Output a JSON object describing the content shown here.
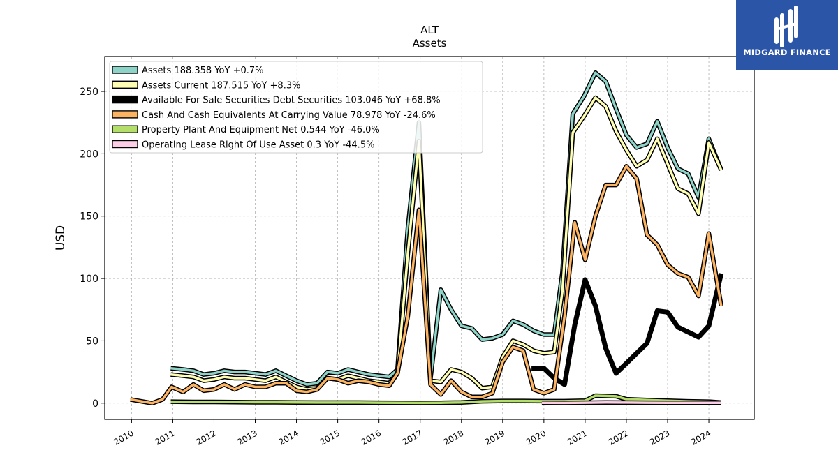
{
  "chart_data": {
    "type": "line",
    "title": "ALT",
    "subtitle": "Assets",
    "ylabel": "USD",
    "xlabel": "",
    "ylim": [
      -13,
      278
    ],
    "xlim": [
      2009.35,
      2025.1
    ],
    "grid": true,
    "legend_position": "top-left",
    "x_ticks": [
      "2010",
      "2011",
      "2012",
      "2013",
      "2014",
      "2015",
      "2016",
      "2017",
      "2018",
      "2019",
      "2020",
      "2021",
      "2022",
      "2023",
      "2024"
    ],
    "y_ticks": [
      "0",
      "50",
      "100",
      "150",
      "200",
      "250"
    ],
    "series": [
      {
        "name": "Assets  188.358 YoY +0.7%",
        "color": "#8dd3c7",
        "width": 3.5,
        "points": [
          [
            2010.95,
            28
          ],
          [
            2011.25,
            27
          ],
          [
            2011.5,
            26
          ],
          [
            2011.75,
            23
          ],
          [
            2012.0,
            24
          ],
          [
            2012.25,
            26
          ],
          [
            2012.5,
            25
          ],
          [
            2012.75,
            25
          ],
          [
            2013.0,
            24
          ],
          [
            2013.25,
            23
          ],
          [
            2013.5,
            26
          ],
          [
            2013.75,
            22
          ],
          [
            2014.0,
            18
          ],
          [
            2014.25,
            15
          ],
          [
            2014.5,
            16
          ],
          [
            2014.75,
            25
          ],
          [
            2015.0,
            24
          ],
          [
            2015.25,
            27
          ],
          [
            2015.5,
            25
          ],
          [
            2015.75,
            23
          ],
          [
            2016.0,
            22
          ],
          [
            2016.25,
            21
          ],
          [
            2016.45,
            27
          ],
          [
            2016.7,
            140
          ],
          [
            2016.97,
            225
          ],
          [
            2017.25,
            20
          ],
          [
            2017.5,
            91
          ],
          [
            2017.75,
            75
          ],
          [
            2018.0,
            62
          ],
          [
            2018.25,
            60
          ],
          [
            2018.5,
            51
          ],
          [
            2018.75,
            52
          ],
          [
            2019.0,
            55
          ],
          [
            2019.25,
            66
          ],
          [
            2019.5,
            63
          ],
          [
            2019.75,
            58
          ],
          [
            2020.0,
            55
          ],
          [
            2020.25,
            55
          ],
          [
            2020.45,
            105
          ],
          [
            2020.7,
            232
          ],
          [
            2020.97,
            246
          ],
          [
            2021.25,
            265
          ],
          [
            2021.5,
            258
          ],
          [
            2021.75,
            236
          ],
          [
            2022.0,
            215
          ],
          [
            2022.25,
            205
          ],
          [
            2022.5,
            208
          ],
          [
            2022.75,
            226
          ],
          [
            2023.0,
            205
          ],
          [
            2023.25,
            188
          ],
          [
            2023.5,
            184
          ],
          [
            2023.75,
            165
          ],
          [
            2024.0,
            212
          ],
          [
            2024.3,
            187
          ]
        ]
      },
      {
        "name": "Assets Current  187.515 YoY +8.3%",
        "color": "#ffffb3",
        "width": 3.5,
        "points": [
          [
            2010.95,
            23
          ],
          [
            2011.25,
            22
          ],
          [
            2011.5,
            21
          ],
          [
            2011.75,
            18
          ],
          [
            2012.0,
            19
          ],
          [
            2012.25,
            21
          ],
          [
            2012.5,
            20
          ],
          [
            2012.75,
            20
          ],
          [
            2013.0,
            19
          ],
          [
            2013.25,
            18
          ],
          [
            2013.5,
            21
          ],
          [
            2013.75,
            17
          ],
          [
            2014.0,
            13
          ],
          [
            2014.25,
            11
          ],
          [
            2014.5,
            12
          ],
          [
            2014.75,
            20
          ],
          [
            2015.0,
            19
          ],
          [
            2015.25,
            22
          ],
          [
            2015.5,
            20
          ],
          [
            2015.75,
            18
          ],
          [
            2016.0,
            17
          ],
          [
            2016.25,
            16
          ],
          [
            2016.45,
            24
          ],
          [
            2016.7,
            120
          ],
          [
            2016.97,
            210
          ],
          [
            2017.25,
            18
          ],
          [
            2017.5,
            17
          ],
          [
            2017.75,
            27
          ],
          [
            2018.0,
            25
          ],
          [
            2018.25,
            20
          ],
          [
            2018.5,
            12
          ],
          [
            2018.75,
            13
          ],
          [
            2019.0,
            37
          ],
          [
            2019.25,
            50
          ],
          [
            2019.5,
            47
          ],
          [
            2019.75,
            42
          ],
          [
            2020.0,
            40
          ],
          [
            2020.25,
            41
          ],
          [
            2020.45,
            90
          ],
          [
            2020.7,
            217
          ],
          [
            2020.97,
            230
          ],
          [
            2021.25,
            245
          ],
          [
            2021.5,
            238
          ],
          [
            2021.75,
            218
          ],
          [
            2022.0,
            203
          ],
          [
            2022.25,
            190
          ],
          [
            2022.5,
            195
          ],
          [
            2022.75,
            212
          ],
          [
            2023.0,
            192
          ],
          [
            2023.25,
            172
          ],
          [
            2023.5,
            168
          ],
          [
            2023.75,
            152
          ],
          [
            2024.0,
            209
          ],
          [
            2024.3,
            187
          ]
        ]
      },
      {
        "name": "Available For Sale Securities Debt Securities  103.046 YoY +68.8%",
        "color": "#000000",
        "width": 7,
        "points": [
          [
            2019.7,
            28
          ],
          [
            2020.0,
            28
          ],
          [
            2020.25,
            20
          ],
          [
            2020.5,
            15
          ],
          [
            2020.75,
            63
          ],
          [
            2021.0,
            99
          ],
          [
            2021.25,
            78
          ],
          [
            2021.5,
            44
          ],
          [
            2021.75,
            24
          ],
          [
            2022.0,
            32
          ],
          [
            2022.25,
            40
          ],
          [
            2022.5,
            48
          ],
          [
            2022.75,
            74
          ],
          [
            2023.0,
            73
          ],
          [
            2023.25,
            61
          ],
          [
            2023.5,
            57
          ],
          [
            2023.75,
            53
          ],
          [
            2024.0,
            62
          ],
          [
            2024.3,
            104
          ]
        ]
      },
      {
        "name": "Cash And Cash Equivalents At Carrying Value  78.978 YoY -24.6%",
        "color": "#fdb462",
        "width": 3.5,
        "points": [
          [
            2009.97,
            3
          ],
          [
            2010.5,
            0
          ],
          [
            2010.75,
            3
          ],
          [
            2010.97,
            13
          ],
          [
            2011.25,
            9
          ],
          [
            2011.5,
            15
          ],
          [
            2011.75,
            10
          ],
          [
            2012.0,
            11
          ],
          [
            2012.25,
            15
          ],
          [
            2012.5,
            11
          ],
          [
            2012.75,
            15
          ],
          [
            2013.0,
            13
          ],
          [
            2013.25,
            13
          ],
          [
            2013.5,
            16
          ],
          [
            2013.75,
            16
          ],
          [
            2014.0,
            10
          ],
          [
            2014.25,
            9
          ],
          [
            2014.5,
            11
          ],
          [
            2014.75,
            20
          ],
          [
            2015.0,
            19
          ],
          [
            2015.25,
            16
          ],
          [
            2015.5,
            18
          ],
          [
            2015.75,
            17
          ],
          [
            2016.0,
            15
          ],
          [
            2016.25,
            14
          ],
          [
            2016.45,
            24
          ],
          [
            2016.7,
            70
          ],
          [
            2016.97,
            155
          ],
          [
            2017.25,
            15
          ],
          [
            2017.5,
            7
          ],
          [
            2017.75,
            18
          ],
          [
            2018.0,
            9
          ],
          [
            2018.25,
            5
          ],
          [
            2018.5,
            5
          ],
          [
            2018.75,
            8
          ],
          [
            2019.0,
            33
          ],
          [
            2019.25,
            45
          ],
          [
            2019.5,
            42
          ],
          [
            2019.75,
            11
          ],
          [
            2020.0,
            8
          ],
          [
            2020.25,
            11
          ],
          [
            2020.5,
            70
          ],
          [
            2020.75,
            145
          ],
          [
            2021.0,
            115
          ],
          [
            2021.25,
            150
          ],
          [
            2021.5,
            175
          ],
          [
            2021.75,
            175
          ],
          [
            2022.0,
            190
          ],
          [
            2022.25,
            180
          ],
          [
            2022.5,
            135
          ],
          [
            2022.75,
            127
          ],
          [
            2023.0,
            111
          ],
          [
            2023.25,
            104
          ],
          [
            2023.5,
            101
          ],
          [
            2023.75,
            86
          ],
          [
            2024.0,
            136
          ],
          [
            2024.3,
            78
          ]
        ]
      },
      {
        "name": "Property Plant And Equipment Net  0.544 YoY -46.0%",
        "color": "#b3de69",
        "width": 3.5,
        "points": [
          [
            2010.95,
            1.2
          ],
          [
            2011.5,
            1.0
          ],
          [
            2012.0,
            1.0
          ],
          [
            2012.5,
            0.8
          ],
          [
            2013.0,
            0.7
          ],
          [
            2013.5,
            0.7
          ],
          [
            2014.0,
            0.6
          ],
          [
            2014.5,
            0.5
          ],
          [
            2015.0,
            0.5
          ],
          [
            2015.5,
            0.5
          ],
          [
            2016.0,
            0.4
          ],
          [
            2016.5,
            0.3
          ],
          [
            2017.0,
            0.2
          ],
          [
            2017.5,
            0.3
          ],
          [
            2018.0,
            0.6
          ],
          [
            2018.5,
            1.5
          ],
          [
            2019.0,
            1.8
          ],
          [
            2019.5,
            1.8
          ],
          [
            2020.0,
            1.6
          ],
          [
            2020.5,
            1.6
          ],
          [
            2021.0,
            2.0
          ],
          [
            2021.25,
            6
          ],
          [
            2021.75,
            5.5
          ],
          [
            2022.0,
            3.2
          ],
          [
            2022.5,
            2.5
          ],
          [
            2023.0,
            2.0
          ],
          [
            2023.5,
            1.5
          ],
          [
            2024.0,
            1.2
          ],
          [
            2024.3,
            0.5
          ]
        ]
      },
      {
        "name": "Operating Lease Right Of Use Asset  0.3 YoY -44.5%",
        "color": "#fccde5",
        "width": 3.5,
        "points": [
          [
            2019.95,
            0.3
          ],
          [
            2020.5,
            0.2
          ],
          [
            2021.0,
            0.4
          ],
          [
            2021.5,
            0.6
          ],
          [
            2022.0,
            0.5
          ],
          [
            2022.5,
            0.4
          ],
          [
            2023.0,
            0.3
          ],
          [
            2023.5,
            0.3
          ],
          [
            2024.0,
            0.3
          ],
          [
            2024.3,
            0.3
          ]
        ]
      }
    ]
  },
  "logo": {
    "text": "MIDGARD FINANCE",
    "color": "#2b55a6"
  }
}
